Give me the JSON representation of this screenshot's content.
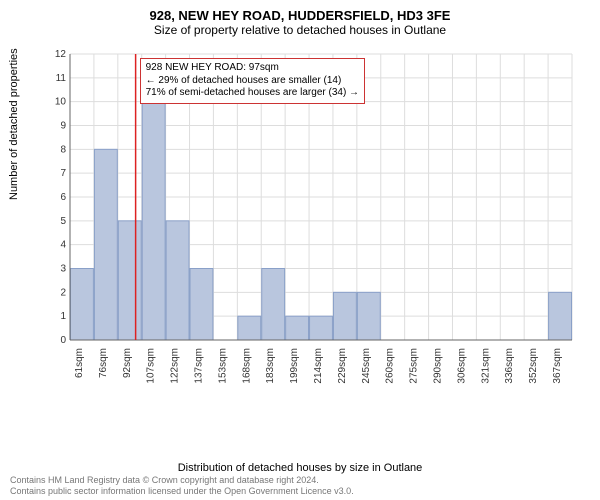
{
  "title": "928, NEW HEY ROAD, HUDDERSFIELD, HD3 3FE",
  "subtitle": "Size of property relative to detached houses in Outlane",
  "ylabel": "Number of detached properties",
  "xlabel": "Distribution of detached houses by size in Outlane",
  "caption1": "Contains HM Land Registry data © Crown copyright and database right 2024.",
  "caption2": "Contains public sector information licensed under the Open Government Licence v3.0.",
  "callout": {
    "line1": "928 NEW HEY ROAD: 97sqm",
    "line2": "← 29% of detached houses are smaller (14)",
    "line3": "71% of semi-detached houses are larger (34) →",
    "border_color": "#cc3333"
  },
  "chart": {
    "type": "histogram",
    "background_color": "#ffffff",
    "grid_color": "#dddddd",
    "axis_color": "#666666",
    "bar_fill": "#b9c6de",
    "bar_stroke": "#8aa0c8",
    "marker_line_color": "#dd2222",
    "marker_x": 97,
    "x_start": 55,
    "x_step": 15.3,
    "bar_count": 21,
    "values": [
      3,
      8,
      5,
      10,
      5,
      3,
      0,
      1,
      3,
      1,
      1,
      2,
      2,
      0,
      0,
      0,
      0,
      0,
      0,
      0,
      2
    ],
    "y_max": 12,
    "y_ticks": [
      0,
      1,
      2,
      3,
      4,
      5,
      6,
      7,
      8,
      9,
      10,
      11,
      12
    ],
    "x_labels": [
      "61sqm",
      "76sqm",
      "92sqm",
      "107sqm",
      "122sqm",
      "137sqm",
      "153sqm",
      "168sqm",
      "183sqm",
      "199sqm",
      "214sqm",
      "229sqm",
      "245sqm",
      "260sqm",
      "275sqm",
      "290sqm",
      "306sqm",
      "321sqm",
      "336sqm",
      "352sqm",
      "367sqm"
    ],
    "tick_fontsize": 10,
    "label_fontsize": 11
  }
}
